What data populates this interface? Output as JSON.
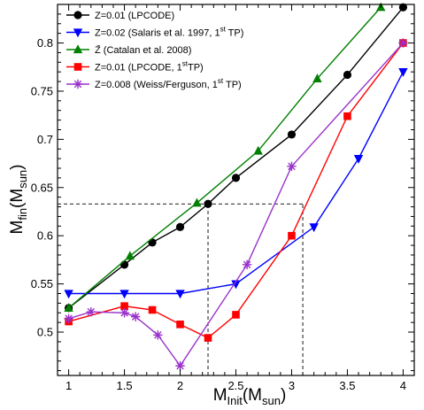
{
  "chart_data": {
    "type": "line",
    "xlabel": {
      "main": "M",
      "sub": "Init",
      "open": "(M",
      "sub2": "sun",
      "close": ")"
    },
    "ylabel": {
      "main": "M",
      "sub": "fin",
      "open": "(M",
      "sub2": "sun",
      "close": ")"
    },
    "xlim": [
      0.9,
      4.1
    ],
    "ylim": [
      0.455,
      0.84
    ],
    "x_ticks": [
      1,
      1.5,
      2,
      2.5,
      3,
      3.5,
      4
    ],
    "x_tick_labels": [
      "1",
      "1.5",
      "2",
      "2.5",
      "3",
      "3.5",
      "4"
    ],
    "y_ticks": [
      0.5,
      0.55,
      0.6,
      0.65,
      0.7,
      0.75,
      0.8
    ],
    "y_tick_labels": [
      "0.5",
      "0.55",
      "0.6",
      "0.65",
      "0.7",
      "0.75",
      "0.8"
    ],
    "grid": false,
    "legend_position": "top-left",
    "guide_lines": [
      {
        "points": [
          [
            0.9,
            0.633
          ],
          [
            3.1,
            0.633
          ]
        ]
      },
      {
        "points": [
          [
            2.25,
            0.455
          ],
          [
            2.25,
            0.633
          ]
        ]
      },
      {
        "points": [
          [
            3.1,
            0.455
          ],
          [
            3.1,
            0.633
          ]
        ]
      }
    ],
    "series": [
      {
        "name": "Z=0.01 (LPCODE)",
        "name_sup": "",
        "name_tail": "",
        "color": "#000000",
        "marker": "circle",
        "x": [
          1,
          1.5,
          1.75,
          2,
          2.25,
          2.5,
          3,
          3.5,
          4
        ],
        "y": [
          0.525,
          0.57,
          0.593,
          0.609,
          0.633,
          0.66,
          0.705,
          0.767,
          0.837
        ]
      },
      {
        "name": "Z=0.02 (Salaris et al. 1997, 1",
        "name_sup": "st",
        "name_tail": " TP)",
        "color": "#0000ff",
        "marker": "triangle-down",
        "x": [
          1,
          1.5,
          2,
          2.5,
          3.2,
          3.6,
          4
        ],
        "y": [
          0.54,
          0.54,
          0.54,
          0.55,
          0.609,
          0.68,
          0.77
        ]
      },
      {
        "name": "Z̄ (Catalan et al. 2008)",
        "name_sup": "",
        "name_tail": "",
        "color": "#008000",
        "marker": "triangle-up",
        "x": [
          1,
          1.55,
          2.15,
          2.7,
          3.23,
          3.8
        ],
        "y": [
          0.525,
          0.579,
          0.634,
          0.688,
          0.763,
          0.837
        ]
      },
      {
        "name": "Z=0.01 (LPCODE, 1",
        "name_sup": "st",
        "name_tail": "TP)",
        "color": "#ff0000",
        "marker": "square",
        "x": [
          1,
          1.5,
          1.75,
          2,
          2.25,
          2.5,
          3,
          3.5,
          4
        ],
        "y": [
          0.511,
          0.527,
          0.523,
          0.508,
          0.494,
          0.518,
          0.6,
          0.724,
          0.8
        ]
      },
      {
        "name": "Z=0.008 (Weiss/Ferguson, 1",
        "name_sup": "st",
        "name_tail": " TP)",
        "color": "#9932cc",
        "marker": "star",
        "x": [
          1,
          1.2,
          1.5,
          1.6,
          1.8,
          2,
          2.6,
          3,
          4
        ],
        "y": [
          0.514,
          0.521,
          0.52,
          0.516,
          0.497,
          0.465,
          0.57,
          0.672,
          0.8
        ]
      }
    ]
  }
}
